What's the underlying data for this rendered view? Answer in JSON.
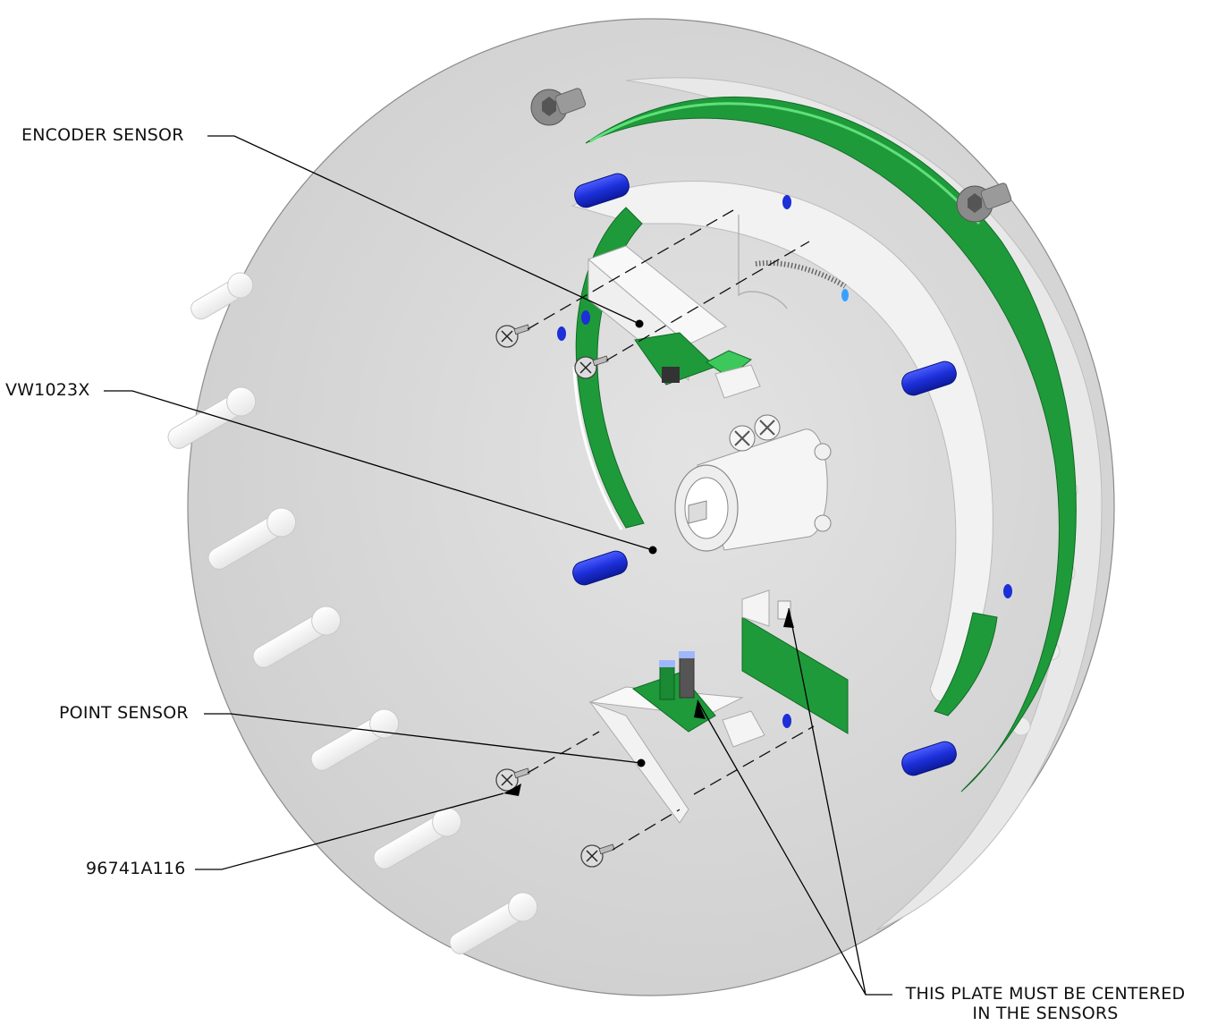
{
  "callouts": {
    "encoder_sensor": "ENCODER SENSOR",
    "vw1023x": "VW1023X",
    "point_sensor": "POINT SENSOR",
    "screw_part": "96741A116",
    "plate_note_line1": "THIS PLATE MUST BE CENTERED",
    "plate_note_line2": "IN THE SENSORS"
  },
  "colors": {
    "disc": "#d6d6d6",
    "disc_edge": "#9a9a9a",
    "pcb_green": "#1f9a3a",
    "pcb_green_light": "#3cc85a",
    "standoff_blue": "#1c2fd8",
    "bracket_white": "#f7f7f7",
    "leader": "#000000",
    "fastener_dark": "#7a7a7a"
  }
}
